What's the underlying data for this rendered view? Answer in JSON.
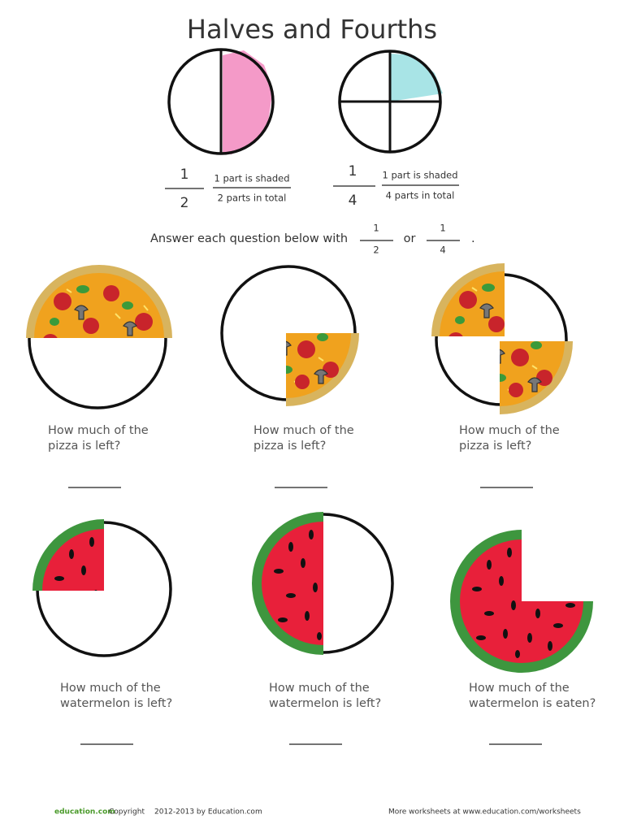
{
  "title": "Halves and Fourths",
  "examples": [
    {
      "numerator": 1,
      "denominator": 2,
      "shaded": "1 part is shaded",
      "total": "2 parts in total"
    },
    {
      "numerator": 1,
      "denominator": 4,
      "shaded": "1 part is shaded",
      "total": "4 parts in total"
    }
  ],
  "instruction": {
    "text": "Answer each question below with",
    "options": [
      {
        "numerator": 1,
        "denominator": 2
      },
      {
        "numerator": 1,
        "denominator": 4
      }
    ],
    "or": "or",
    "end": "."
  },
  "questions": [
    {
      "line1": "How much of the",
      "line2": "pizza is left?"
    },
    {
      "line1": "How much of the",
      "line2": "pizza is left?"
    },
    {
      "line1": "How much of the",
      "line2": "pizza is left?"
    },
    {
      "line1": "How much of the",
      "line2": "watermelon is left?"
    },
    {
      "line1": "How much of the",
      "line2": "watermelon is left?"
    },
    {
      "line1": "How much of the",
      "line2": "watermelon is eaten?"
    }
  ],
  "footer": {
    "logo": "education.com",
    "copyright": "Copyright",
    "years": "2012-2013 by Education.com",
    "more": "More worksheets at www.education.com/worksheets"
  }
}
